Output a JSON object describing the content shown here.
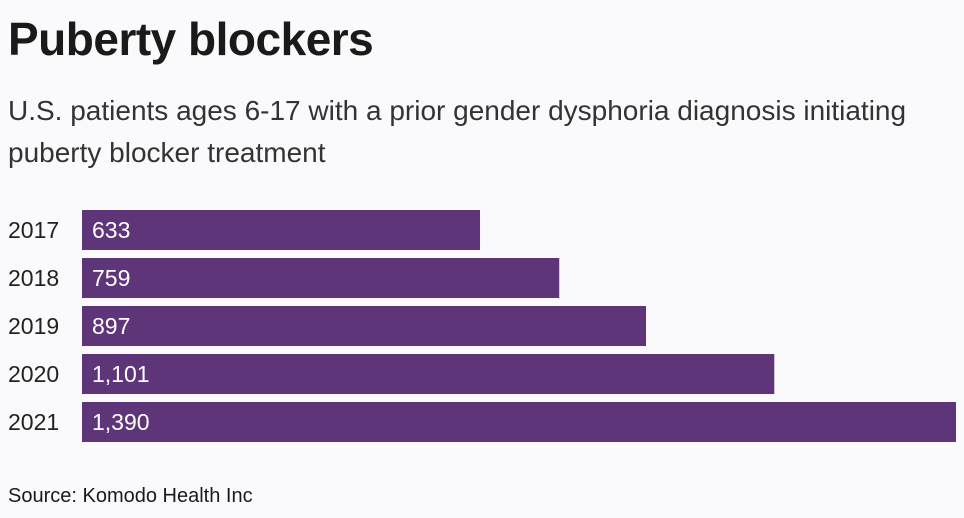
{
  "chart_data": {
    "type": "bar",
    "orientation": "horizontal",
    "title": "Puberty blockers",
    "subtitle": "U.S. patients ages 6-17 with a prior gender dysphoria diagnosis initiating puberty blocker treatment",
    "categories": [
      "2017",
      "2018",
      "2019",
      "2020",
      "2021"
    ],
    "values": [
      633,
      759,
      897,
      1101,
      1390
    ],
    "value_labels": [
      "633",
      "759",
      "897",
      "1,101",
      "1,390"
    ],
    "xlim": [
      0,
      1390
    ],
    "bar_color": "#5e3578",
    "grid": false,
    "legend": "none",
    "source": "Source: Komodo Health Inc"
  }
}
